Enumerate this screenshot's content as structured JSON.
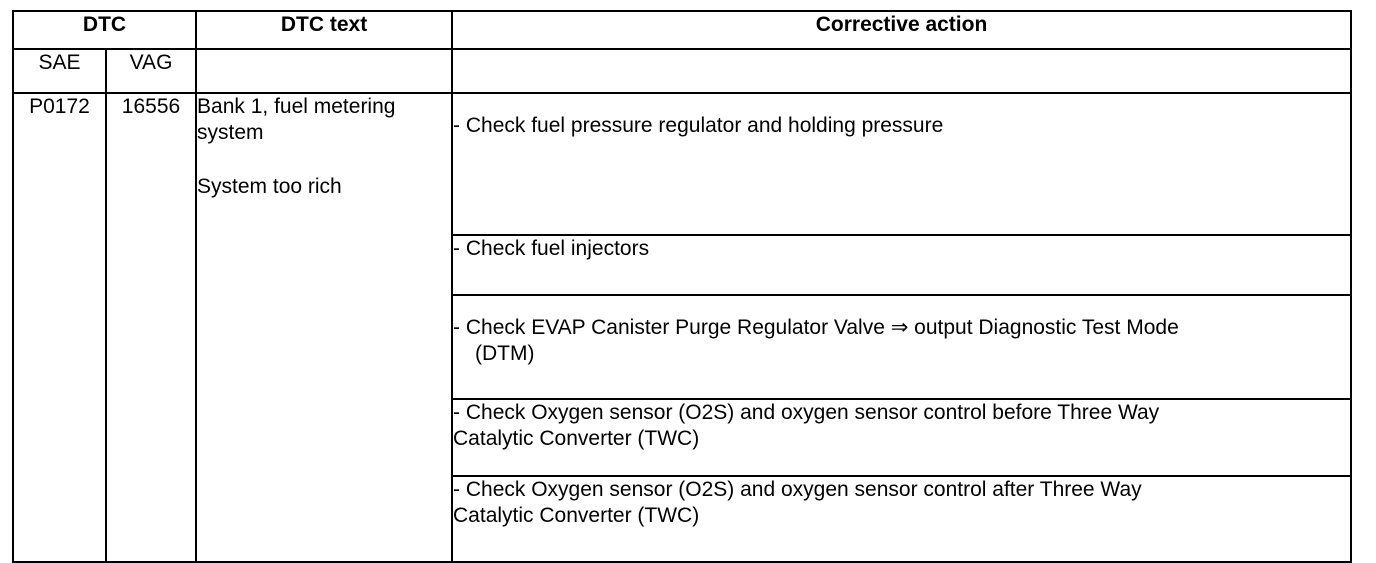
{
  "headers": {
    "dtc": "DTC",
    "dtc_text": "DTC text",
    "corrective_action": "Corrective action"
  },
  "subheaders": {
    "sae": "SAE",
    "vag": "VAG"
  },
  "row": {
    "sae": "P0172",
    "vag": "16556",
    "text_line1": "Bank 1, fuel metering",
    "text_line2": "system",
    "text_line3": "System too rich"
  },
  "actions": [
    {
      "line1": "- Check fuel pressure regulator and holding pressure"
    },
    {
      "line1": "- Check fuel injectors"
    },
    {
      "line1": "- Check EVAP Canister Purge Regulator Valve ⇒ output Diagnostic Test Mode",
      "line2": "(DTM)"
    },
    {
      "line1": "- Check Oxygen sensor (O2S) and oxygen sensor control before Three Way",
      "line2": "Catalytic Converter (TWC)"
    },
    {
      "line1": "- Check Oxygen sensor (O2S) and oxygen sensor control after Three Way",
      "line2": "Catalytic Converter (TWC)"
    }
  ]
}
